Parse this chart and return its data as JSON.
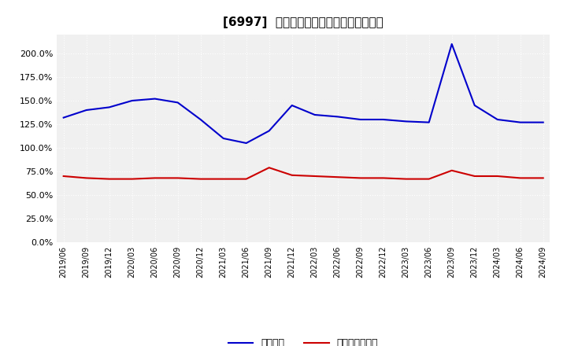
{
  "title": "[6997]  固定比率、固定長期適合率の推移",
  "x_labels": [
    "2019/06",
    "2019/09",
    "2019/12",
    "2020/03",
    "2020/06",
    "2020/09",
    "2020/12",
    "2021/03",
    "2021/06",
    "2021/09",
    "2021/12",
    "2022/03",
    "2022/06",
    "2022/09",
    "2022/12",
    "2023/03",
    "2023/06",
    "2023/09",
    "2023/12",
    "2024/03",
    "2024/06",
    "2024/09"
  ],
  "fixed_ratio": [
    132,
    140,
    143,
    150,
    152,
    148,
    130,
    110,
    105,
    118,
    145,
    135,
    133,
    130,
    130,
    128,
    127,
    210,
    145,
    130,
    127,
    127
  ],
  "fixed_long_ratio": [
    70,
    68,
    67,
    67,
    68,
    68,
    67,
    67,
    67,
    79,
    71,
    70,
    69,
    68,
    68,
    67,
    67,
    76,
    70,
    70,
    68,
    68
  ],
  "line1_color": "#0000cc",
  "line2_color": "#cc0000",
  "ylim": [
    0,
    220
  ],
  "yticks": [
    0,
    25,
    50,
    75,
    100,
    125,
    150,
    175,
    200
  ],
  "legend_labels": [
    "固定比率",
    "固定長期適合率"
  ],
  "background_color": "#ffffff",
  "plot_bg_color": "#f0f0f0",
  "grid_color": "#ffffff",
  "title_fontsize": 11
}
